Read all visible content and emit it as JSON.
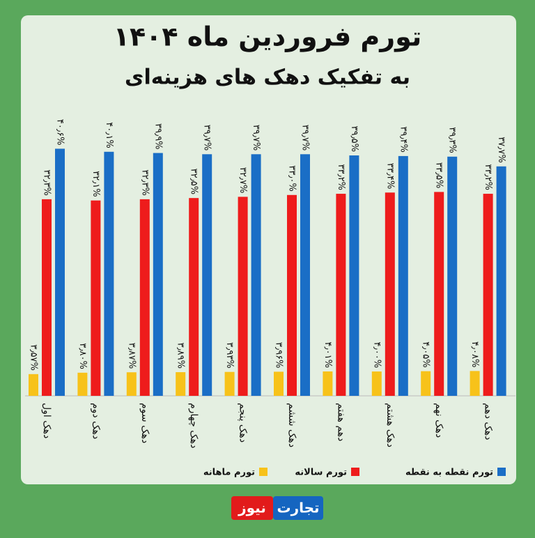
{
  "chart_data": {
    "type": "bar",
    "title": "تورم فروردین ماه ۱۴۰۴",
    "subtitle": "به تفکیک دهک های هزینه‌ای",
    "categories": [
      "دهک اول",
      "دهک دوم",
      "دهک سوم",
      "دهک چهارم",
      "دهک پنجم",
      "دهک ششم",
      "دهم هفتم",
      "دهک هشتم",
      "دهک نهم",
      "دهک دهم"
    ],
    "series": [
      {
        "name": "تورم ماهانه",
        "color": "#f7c21a",
        "values": [
          3.57,
          3.8,
          3.87,
          3.89,
          3.93,
          3.96,
          4.01,
          4.0,
          4.05,
          4.08
        ],
        "value_labels": [
          "۳٫۵۷%",
          "۳٫۸۰%",
          "۳٫۸۷%",
          "۳٫۸۹%",
          "۳٫۹۳%",
          "۳٫۹۶%",
          "۴٫۰۱%",
          "۴٫۰۰%",
          "۴٫۰۵%",
          "۴٫۰۸%"
        ]
      },
      {
        "name": "تورم سالانه",
        "color": "#ee1c1c",
        "values": [
          32.3,
          32.1,
          32.3,
          32.5,
          32.7,
          33.0,
          33.2,
          33.4,
          33.5,
          33.2
        ],
        "value_labels": [
          "۳۲٫۳%",
          "۳۲٫۱%",
          "۳۲٫۳%",
          "۳۲٫۵%",
          "۳۲٫۷%",
          "۳۳٫۰%",
          "۳۳٫۲%",
          "۳۳٫۴%",
          "۳۳٫۵%",
          "۳۳٫۲%"
        ]
      },
      {
        "name": "تورم نقطه به نقطه",
        "color": "#1a6ec6",
        "values": [
          40.6,
          40.1,
          39.9,
          39.7,
          39.7,
          39.7,
          39.5,
          39.4,
          39.3,
          37.7
        ],
        "value_labels": [
          "۴۰٫۶%",
          "۴۰٫۱%",
          "۳۹٫۹%",
          "۳۹٫۷%",
          "۳۹٫۷%",
          "۳۹٫۷%",
          "۳۹٫۵%",
          "۳۹٫۴%",
          "۳۹٫۳%",
          "۳۷٫۷%"
        ]
      }
    ],
    "ylim": [
      0,
      45
    ]
  },
  "logo": {
    "left": "نیوز",
    "right": "تجارت"
  }
}
